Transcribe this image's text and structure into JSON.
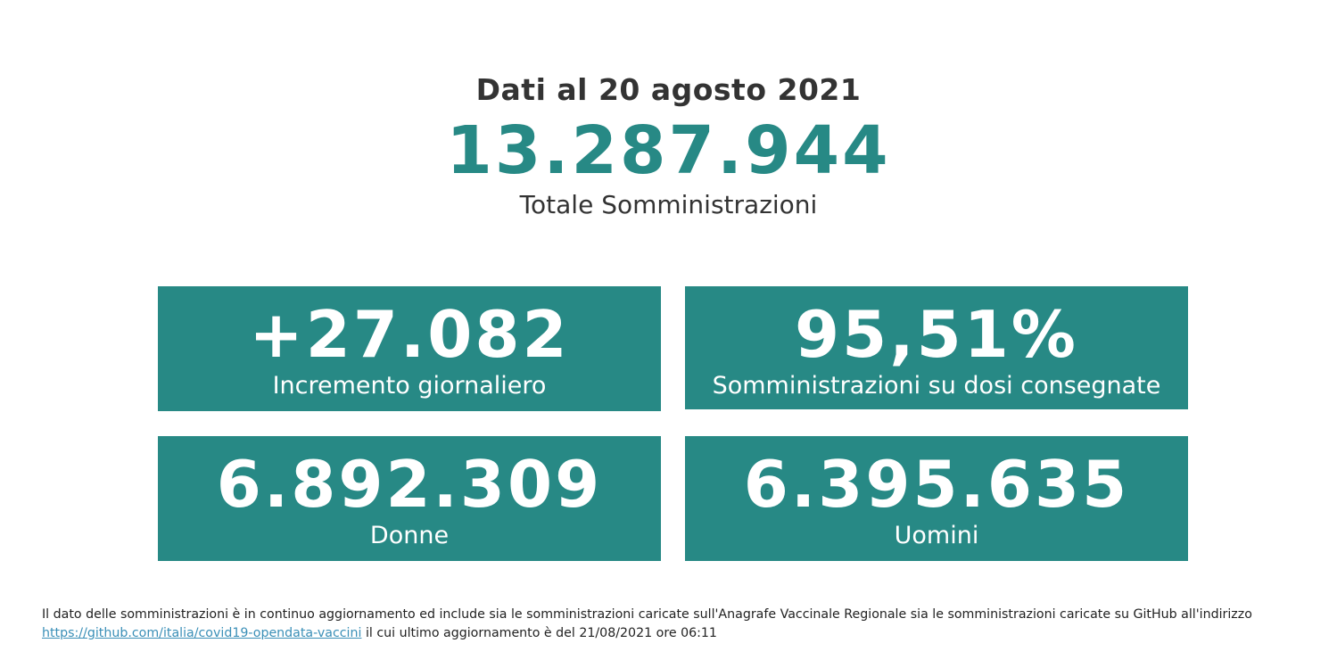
{
  "header": {
    "date_label": "Dati al 20 agosto 2021",
    "total_value": "13.287.944",
    "total_label": "Totale Somministrazioni"
  },
  "cards": {
    "increment": {
      "value": "+27.082",
      "label": "Incremento giornaliero"
    },
    "ratio": {
      "value": "95,51%",
      "label": "Somministrazioni su dosi consegnate"
    },
    "women": {
      "value": "6.892.309",
      "label": "Donne"
    },
    "men": {
      "value": "6.395.635",
      "label": "Uomini"
    }
  },
  "footer": {
    "text_before_link": "Il dato delle somministrazioni è in continuo aggiornamento ed include sia le somministrazioni caricate sull'Anagrafe Vaccinale Regionale sia le somministrazioni caricate su GitHub all'indirizzo",
    "link_text": "https://github.com/italia/covid19-opendata-vaccini",
    "link_href": "https://github.com/italia/covid19-opendata-vaccini",
    "text_after_link": "il cui ultimo aggiornamento è del 21/08/2021 ore 06:11"
  },
  "colors": {
    "accent": "#278985",
    "text": "#333333",
    "link": "#3a8fb7"
  }
}
